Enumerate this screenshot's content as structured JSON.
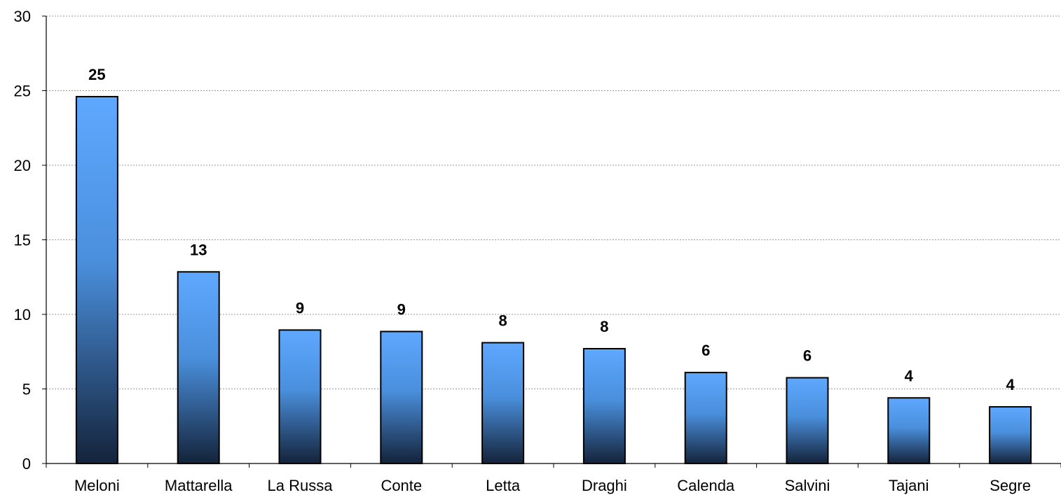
{
  "chart_data": {
    "type": "bar",
    "categories": [
      "Meloni",
      "Mattarella",
      "La Russa",
      "Conte",
      "Letta",
      "Draghi",
      "Calenda",
      "Salvini",
      "Tajani",
      "Segre"
    ],
    "values": [
      24.6,
      12.85,
      8.95,
      8.85,
      8.1,
      7.7,
      6.1,
      5.75,
      4.4,
      3.8
    ],
    "data_labels": [
      "25",
      "13",
      "9",
      "9",
      "8",
      "8",
      "6",
      "6",
      "4",
      "4"
    ],
    "title": "",
    "xlabel": "",
    "ylabel": "",
    "ylim": [
      0,
      30
    ],
    "yticks": [
      0,
      5,
      10,
      15,
      20,
      25,
      30
    ],
    "grid": true,
    "legend": "none",
    "colors": {
      "bar_top": "#5ea8ff",
      "bar_bottom": "#14233a",
      "bar_stroke": "#000000",
      "grid": "#999999"
    }
  }
}
